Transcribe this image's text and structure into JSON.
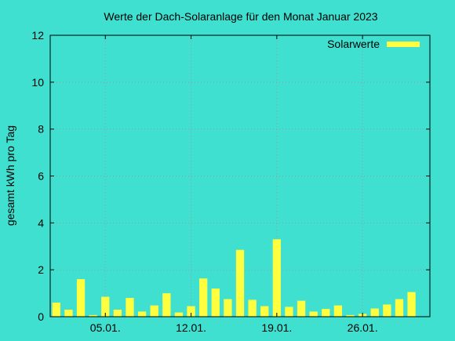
{
  "chart_data": {
    "type": "bar",
    "title": "Werte der Dach-Solaranlage für den Monat Januar 2023",
    "xlabel": "",
    "ylabel": "gesamt kWh pro Tag",
    "ylim": [
      0,
      12
    ],
    "y_ticks": [
      "0",
      "2",
      "4",
      "6",
      "8",
      "10",
      "12"
    ],
    "x_ticks": [
      {
        "day": 5,
        "label": "05.01."
      },
      {
        "day": 12,
        "label": "12.01."
      },
      {
        "day": 19,
        "label": "19.01."
      },
      {
        "day": 26,
        "label": "26.01."
      }
    ],
    "x_range": [
      1,
      31
    ],
    "grid": true,
    "legend_position": "top-right",
    "series": [
      {
        "name": "Solarwerte",
        "color": "#ffff40",
        "days": [
          1,
          2,
          3,
          4,
          5,
          6,
          7,
          8,
          9,
          10,
          11,
          12,
          13,
          14,
          15,
          16,
          17,
          18,
          19,
          20,
          21,
          22,
          23,
          24,
          25,
          26,
          27,
          28,
          29,
          30,
          31
        ],
        "values": [
          0.6,
          0.3,
          1.6,
          0.07,
          0.85,
          0.3,
          0.8,
          0.22,
          0.48,
          1.0,
          0.18,
          0.45,
          1.63,
          1.2,
          0.75,
          2.85,
          0.72,
          0.45,
          3.3,
          0.42,
          0.68,
          0.22,
          0.33,
          0.48,
          0.07,
          0.12,
          0.35,
          0.52,
          0.75,
          1.05,
          0
        ]
      }
    ]
  }
}
